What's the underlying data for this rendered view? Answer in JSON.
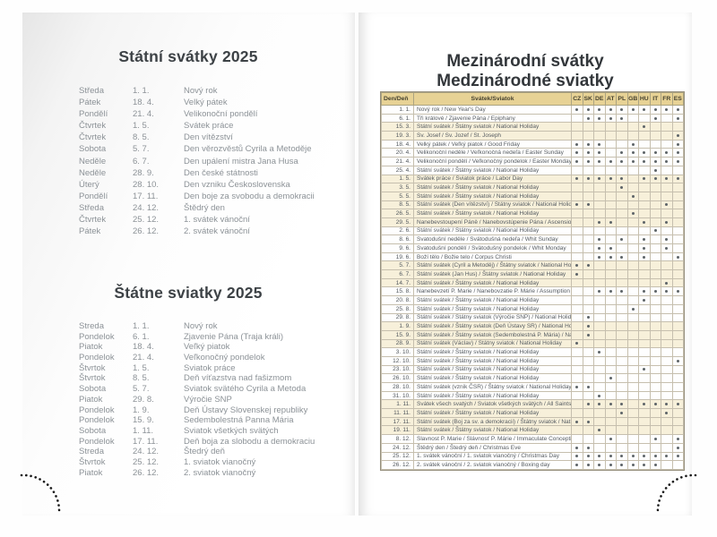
{
  "left_page": {
    "czech": {
      "title": "Státní svátky 2025",
      "rows": [
        {
          "day": "Středa",
          "date": "1. 1.",
          "name": "Nový rok"
        },
        {
          "day": "Pátek",
          "date": "18. 4.",
          "name": "Velký pátek"
        },
        {
          "day": "Pondělí",
          "date": "21. 4.",
          "name": "Velikonoční pondělí"
        },
        {
          "day": "Čtvrtek",
          "date": "1. 5.",
          "name": "Svátek práce"
        },
        {
          "day": "Čtvrtek",
          "date": "8. 5.",
          "name": "Den vítězství"
        },
        {
          "day": "Sobota",
          "date": "5. 7.",
          "name": "Den věrozvěstů Cyrila a Metoděje"
        },
        {
          "day": "Neděle",
          "date": "6. 7.",
          "name": "Den upálení mistra Jana Husa"
        },
        {
          "day": "Neděle",
          "date": "28. 9.",
          "name": "Den české státnosti"
        },
        {
          "day": "Úterý",
          "date": "28. 10.",
          "name": "Den vzniku Československa"
        },
        {
          "day": "Pondělí",
          "date": "17. 11.",
          "name": "Den boje za svobodu a demokracii"
        },
        {
          "day": "Středa",
          "date": "24. 12.",
          "name": "Štědrý den"
        },
        {
          "day": "Čtvrtek",
          "date": "25. 12.",
          "name": "1. svátek vánoční"
        },
        {
          "day": "Pátek",
          "date": "26. 12.",
          "name": "2. svátek vánoční"
        }
      ]
    },
    "slovak": {
      "title": "Štátne sviatky 2025",
      "rows": [
        {
          "day": "Streda",
          "date": "1. 1.",
          "name": "Nový rok"
        },
        {
          "day": "Pondelok",
          "date": "6. 1.",
          "name": "Zjavenie Pána (Traja králi)"
        },
        {
          "day": "Piatok",
          "date": "18. 4.",
          "name": "Veľký piatok"
        },
        {
          "day": "Pondelok",
          "date": "21. 4.",
          "name": "Veľkonočný pondelok"
        },
        {
          "day": "Štvrtok",
          "date": "1. 5.",
          "name": "Sviatok práce"
        },
        {
          "day": "Štvrtok",
          "date": "8. 5.",
          "name": "Deň víťazstva nad fašizmom"
        },
        {
          "day": "Sobota",
          "date": "5. 7.",
          "name": "Sviatok svätého Cyrila a Metoda"
        },
        {
          "day": "Piatok",
          "date": "29. 8.",
          "name": "Výročie SNP"
        },
        {
          "day": "Pondelok",
          "date": "1. 9.",
          "name": "Deň Ústavy Slovenskej republiky"
        },
        {
          "day": "Pondelok",
          "date": "15. 9.",
          "name": "Sedembolestná Panna Mária"
        },
        {
          "day": "Sobota",
          "date": "1. 11.",
          "name": "Sviatok všetkých svätých"
        },
        {
          "day": "Pondelok",
          "date": "17. 11.",
          "name": "Deň boja za slobodu a demokraciu"
        },
        {
          "day": "Streda",
          "date": "24. 12.",
          "name": "Štedrý deň"
        },
        {
          "day": "Štvrtok",
          "date": "25. 12.",
          "name": "1. sviatok vianočný"
        },
        {
          "day": "Piatok",
          "date": "26. 12.",
          "name": "2. sviatok vianočný"
        }
      ]
    }
  },
  "right_page": {
    "title_line1": "Mezinárodní svátky",
    "title_line2": "Medzinárodné sviatky",
    "table": {
      "day_header": "Den/Deň",
      "holiday_header": "Svátek/Sviatok",
      "countries": [
        "CZ",
        "SK",
        "DE",
        "AT",
        "PL",
        "GB",
        "HU",
        "IT",
        "FR",
        "ES"
      ],
      "rows": [
        {
          "date": "1. 1.",
          "name": "Nový rok / New Year's Day",
          "marks": [
            "CZ",
            "SK",
            "DE",
            "AT",
            "PL",
            "GB",
            "HU",
            "IT",
            "FR",
            "ES"
          ],
          "shaded": false
        },
        {
          "date": "6. 1.",
          "name": "Tři králové / Zjavenie Pána / Epiphany",
          "marks": [
            "SK",
            "DE",
            "AT",
            "PL",
            "IT",
            "ES"
          ],
          "shaded": false
        },
        {
          "date": "15. 3.",
          "name": "Státní svátek / Štátny sviatok / National Holiday",
          "marks": [
            "HU"
          ],
          "shaded": true
        },
        {
          "date": "19. 3.",
          "name": "Sv. Josef / Sv. Jozef / St. Joseph",
          "marks": [
            "ES"
          ],
          "shaded": true
        },
        {
          "date": "18. 4.",
          "name": "Velký pátek / Veľký piatok / Good Friday",
          "marks": [
            "CZ",
            "SK",
            "DE",
            "GB",
            "ES"
          ],
          "shaded": false
        },
        {
          "date": "20. 4.",
          "name": "Velikonoční neděle / Veľkonočná nedeľa / Easter Sunday",
          "marks": [
            "CZ",
            "SK",
            "DE",
            "PL",
            "GB",
            "HU",
            "IT",
            "FR",
            "ES"
          ],
          "shaded": false
        },
        {
          "date": "21. 4.",
          "name": "Velikonoční pondělí / Veľkonočný pondelok / Easter Monday",
          "marks": [
            "CZ",
            "SK",
            "DE",
            "AT",
            "PL",
            "GB",
            "HU",
            "IT",
            "FR",
            "ES"
          ],
          "shaded": false
        },
        {
          "date": "25. 4.",
          "name": "Státní svátek / Štátny sviatok / National Holiday",
          "marks": [
            "IT"
          ],
          "shaded": false
        },
        {
          "date": "1. 5.",
          "name": "Svátek práce / Sviatok práce / Labor Day",
          "marks": [
            "CZ",
            "SK",
            "DE",
            "AT",
            "PL",
            "HU",
            "IT",
            "FR",
            "ES"
          ],
          "shaded": true
        },
        {
          "date": "3. 5.",
          "name": "Státní svátek / Štátny sviatok / National Holiday",
          "marks": [
            "PL"
          ],
          "shaded": true
        },
        {
          "date": "5. 5.",
          "name": "Státní svátek / Štátny sviatok / National Holiday",
          "marks": [
            "GB"
          ],
          "shaded": true
        },
        {
          "date": "8. 5.",
          "name": "Státní svátek (Den vítězství) / Štátny sviatok / National Holiday",
          "marks": [
            "CZ",
            "SK",
            "FR"
          ],
          "shaded": true
        },
        {
          "date": "26. 5.",
          "name": "Státní svátek / Štátny sviatok / National Holiday",
          "marks": [
            "GB"
          ],
          "shaded": true
        },
        {
          "date": "29. 5.",
          "name": "Nanebevstoupení Páně / Nanebovstúpenie Pána / Ascension Day",
          "marks": [
            "DE",
            "AT",
            "HU",
            "FR"
          ],
          "shaded": true
        },
        {
          "date": "2. 6.",
          "name": "Státní svátek / Štátny sviatok / National Holiday",
          "marks": [
            "IT"
          ],
          "shaded": false
        },
        {
          "date": "8. 6.",
          "name": "Svatodušní neděle / Svätodušná nedeľa / Whit Sunday",
          "marks": [
            "DE",
            "PL",
            "HU",
            "FR"
          ],
          "shaded": false
        },
        {
          "date": "9. 6.",
          "name": "Svatodušní pondělí / Svätodušný pondelok / Whit Monday",
          "marks": [
            "DE",
            "AT",
            "HU",
            "FR"
          ],
          "shaded": false
        },
        {
          "date": "19. 6.",
          "name": "Boží tělo / Božie telo / Corpus Christi",
          "marks": [
            "DE",
            "AT",
            "PL",
            "HU",
            "ES"
          ],
          "shaded": false
        },
        {
          "date": "5. 7.",
          "name": "Státní svátek (Cyril a Metoděj) / Štátny sviatok / National Holiday",
          "marks": [
            "CZ",
            "SK"
          ],
          "shaded": true
        },
        {
          "date": "6. 7.",
          "name": "Státní svátek (Jan Hus) / Štátny sviatok / National Holiday",
          "marks": [
            "CZ"
          ],
          "shaded": true
        },
        {
          "date": "14. 7.",
          "name": "Státní svátek / Štátny sviatok / National Holiday",
          "marks": [
            "FR"
          ],
          "shaded": true
        },
        {
          "date": "15. 8.",
          "name": "Nanebevzetí P. Marie / Nanebovzatie P. Márie / Assumption of Virgin Mary",
          "marks": [
            "DE",
            "AT",
            "PL",
            "HU",
            "IT",
            "FR",
            "ES"
          ],
          "shaded": false
        },
        {
          "date": "20. 8.",
          "name": "Státní svátek / Štátny sviatok / National Holiday",
          "marks": [
            "HU"
          ],
          "shaded": false
        },
        {
          "date": "25. 8.",
          "name": "Státní svátek / Štátny sviatok / National Holiday",
          "marks": [
            "GB"
          ],
          "shaded": false
        },
        {
          "date": "29. 8.",
          "name": "Státní svátek / Štátny sviatok (Výročie SNP) / National Holiday",
          "marks": [
            "SK"
          ],
          "shaded": false
        },
        {
          "date": "1. 9.",
          "name": "Státní svátek / Štátny sviatok (Deň Ústavy SR) / National Holiday",
          "marks": [
            "SK"
          ],
          "shaded": true
        },
        {
          "date": "15. 9.",
          "name": "Státní svátek / Štátny sviatok (Sedembolestná P. Mária) / National Holiday",
          "marks": [
            "SK"
          ],
          "shaded": true
        },
        {
          "date": "28. 9.",
          "name": "Státní svátek (Václav) / Štátny sviatok / National Holiday",
          "marks": [
            "CZ"
          ],
          "shaded": true
        },
        {
          "date": "3. 10.",
          "name": "Státní svátek / Štátny sviatok / National Holiday",
          "marks": [
            "DE"
          ],
          "shaded": false
        },
        {
          "date": "12. 10.",
          "name": "Státní svátek / Štátny sviatok / National Holiday",
          "marks": [
            "ES"
          ],
          "shaded": false
        },
        {
          "date": "23. 10.",
          "name": "Státní svátek / Štátny sviatok / National Holiday",
          "marks": [
            "HU"
          ],
          "shaded": false
        },
        {
          "date": "26. 10.",
          "name": "Státní svátek / Štátny sviatok / National Holiday",
          "marks": [
            "AT"
          ],
          "shaded": false
        },
        {
          "date": "28. 10.",
          "name": "Státní svátek (vznik ČSR) / Štátny sviatok / National Holiday",
          "marks": [
            "CZ",
            "SK"
          ],
          "shaded": false
        },
        {
          "date": "31. 10.",
          "name": "Státní svátek / Štátny sviatok / National Holiday",
          "marks": [
            "DE"
          ],
          "shaded": false
        },
        {
          "date": "1. 11.",
          "name": "Svátek všech svatých / Sviatok všetkých svätých / All Saints",
          "marks": [
            "SK",
            "DE",
            "AT",
            "PL",
            "HU",
            "IT",
            "FR",
            "ES"
          ],
          "shaded": true
        },
        {
          "date": "11. 11.",
          "name": "Státní svátek / Štátny sviatok / National Holiday",
          "marks": [
            "PL",
            "FR"
          ],
          "shaded": true
        },
        {
          "date": "17. 11.",
          "name": "Státní svátek (Boj za sv. a demokracii) / Štátny sviatok / National Holiday",
          "marks": [
            "CZ",
            "SK"
          ],
          "shaded": true
        },
        {
          "date": "19. 11.",
          "name": "Státní svátek / Štátny sviatok / National Holiday",
          "marks": [
            "DE"
          ],
          "shaded": true
        },
        {
          "date": "8. 12.",
          "name": "Slavnost P. Marie / Slávnosť P. Márie / Immaculate Conception",
          "marks": [
            "AT",
            "IT",
            "ES"
          ],
          "shaded": false
        },
        {
          "date": "24. 12.",
          "name": "Štědrý den / Štedrý deň / Christmas Eve",
          "marks": [
            "CZ",
            "SK",
            "ES"
          ],
          "shaded": false
        },
        {
          "date": "25. 12.",
          "name": "1. svátek vánoční / 1. sviatok vianočný / Christmas Day",
          "marks": [
            "CZ",
            "SK",
            "DE",
            "AT",
            "PL",
            "GB",
            "HU",
            "IT",
            "FR",
            "ES"
          ],
          "shaded": false
        },
        {
          "date": "26. 12.",
          "name": "2. svátek vánoční / 2. sviatok vianočný / Boxing day",
          "marks": [
            "CZ",
            "SK",
            "DE",
            "AT",
            "PL",
            "GB",
            "HU",
            "IT"
          ],
          "shaded": false
        }
      ]
    }
  },
  "colors": {
    "row_beige": "#f7f0da",
    "header_tan": "#e7d295",
    "grid_line": "#c6bfae",
    "dot": "#5d6468",
    "list_text": "#8c9297",
    "title_text": "#3d4246"
  }
}
